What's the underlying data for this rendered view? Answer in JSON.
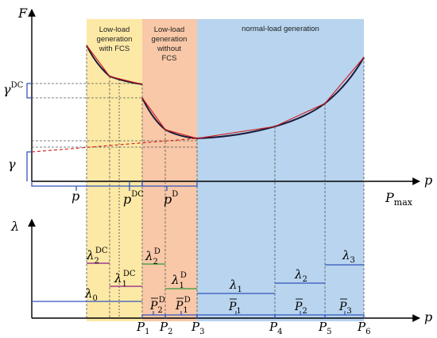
{
  "top": {
    "y_axis_label": "F",
    "x_axis_label": "p",
    "pmax_p": "P",
    "pmax_sub": "max",
    "gamma_dc": "γ",
    "gamma_dc_sup": "DC",
    "gamma": "γ",
    "p_tick": "p",
    "pdc_p": "p",
    "pdc_sup": "DC",
    "pd_p": "p",
    "pd_sup": "D"
  },
  "regions": {
    "r1_line1": "Low-load",
    "r1_line2": "generation",
    "r1_line3": "with FCS",
    "r2_line1": "Low-load",
    "r2_line2": "generation",
    "r2_line3": "without",
    "r2_line4": "FCS",
    "r3_line1": "normal-load generation",
    "color_yellow": "#fde9a6",
    "color_peach": "#f8c8a8",
    "color_blue": "#b8d4ee"
  },
  "bottom": {
    "y_axis_label": "λ",
    "x_axis_label": "p",
    "lambda0": "λ",
    "lambda0_sub": "0",
    "lambda1dc": "λ",
    "lambda1dc_sub": "1",
    "lambda1dc_sup": "DC",
    "lambda2dc": "λ",
    "lambda2dc_sub": "2",
    "lambda2dc_sup": "DC",
    "lambda1d": "λ",
    "lambda1d_sub": "1",
    "lambda1d_sup": "D",
    "lambda2d": "λ",
    "lambda2d_sub": "2",
    "lambda2d_sup": "D",
    "lambda1": "λ",
    "lambda1_sub": "1",
    "lambda2": "λ",
    "lambda2_sub": "2",
    "lambda3": "λ",
    "lambda3_sub": "3",
    "pbar_d2": "P",
    "pbar_d2_sub": "2",
    "pbar_d2_sup": "D",
    "pbar_d1": "P",
    "pbar_d1_sub": "1",
    "pbar_d1_sup": "D",
    "pbar1": "P",
    "pbar1_sub": "1",
    "pbar2": "P",
    "pbar2_sub": "2",
    "pbar3": "P",
    "pbar3_sub": "3",
    "ticks": [
      {
        "p": "P",
        "sub": "1"
      },
      {
        "p": "P",
        "sub": "2"
      },
      {
        "p": "P",
        "sub": "3"
      },
      {
        "p": "P",
        "sub": "4"
      },
      {
        "p": "P",
        "sub": "5"
      },
      {
        "p": "P",
        "sub": "6"
      }
    ]
  }
}
